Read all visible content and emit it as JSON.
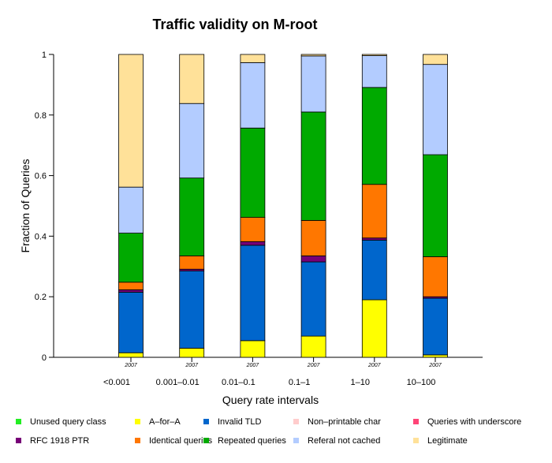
{
  "chart_data": {
    "type": "bar",
    "stacked": true,
    "title": "Traffic validity on M-root",
    "xlabel": "Query rate intervals",
    "ylabel": "Fraction of Queries",
    "ylim": [
      0,
      1
    ],
    "yticks": [
      "0",
      "0.2",
      "0.4",
      "0.6",
      "0.8",
      "1"
    ],
    "categories": [
      "<0.001",
      "0.001-0.01",
      "0.01-0.1",
      "0.1-1",
      "1-10",
      "10-100"
    ],
    "year_labels": [
      "2007",
      "2007",
      "2007",
      "2007",
      "2007",
      "2007"
    ],
    "legend_position": "bottom",
    "series": [
      {
        "name": "Unused query class",
        "color": "#22ee22",
        "values": [
          0,
          0,
          0,
          0,
          0,
          0
        ]
      },
      {
        "name": "A-for-A",
        "color": "#ffff00",
        "values": [
          0.015,
          0.03,
          0.055,
          0.07,
          0.19,
          0.008
        ]
      },
      {
        "name": "Invalid TLD",
        "color": "#0066cc",
        "values": [
          0.2,
          0.255,
          0.315,
          0.245,
          0.197,
          0.187
        ]
      },
      {
        "name": "Non-printable char",
        "color": "#ffcccc",
        "values": [
          0,
          0,
          0,
          0,
          0,
          0
        ]
      },
      {
        "name": "Queries with underscore",
        "color": "#ff4477",
        "values": [
          0,
          0,
          0,
          0,
          0,
          0
        ]
      },
      {
        "name": "RFC 1918 PTR",
        "color": "#770077",
        "values": [
          0.008,
          0.006,
          0.012,
          0.02,
          0.007,
          0.005
        ]
      },
      {
        "name": "Identical queries",
        "color": "#ff7700",
        "values": [
          0.025,
          0.044,
          0.08,
          0.117,
          0.177,
          0.132
        ]
      },
      {
        "name": "Repeated queries",
        "color": "#00aa00",
        "values": [
          0.162,
          0.257,
          0.295,
          0.358,
          0.32,
          0.337
        ]
      },
      {
        "name": "Referal not cached",
        "color": "#b3ccff",
        "values": [
          0.152,
          0.246,
          0.216,
          0.185,
          0.105,
          0.298
        ]
      },
      {
        "name": "Legitimate",
        "color": "#ffe199",
        "values": [
          0.438,
          0.162,
          0.027,
          0.005,
          0.004,
          0.033
        ]
      }
    ]
  }
}
